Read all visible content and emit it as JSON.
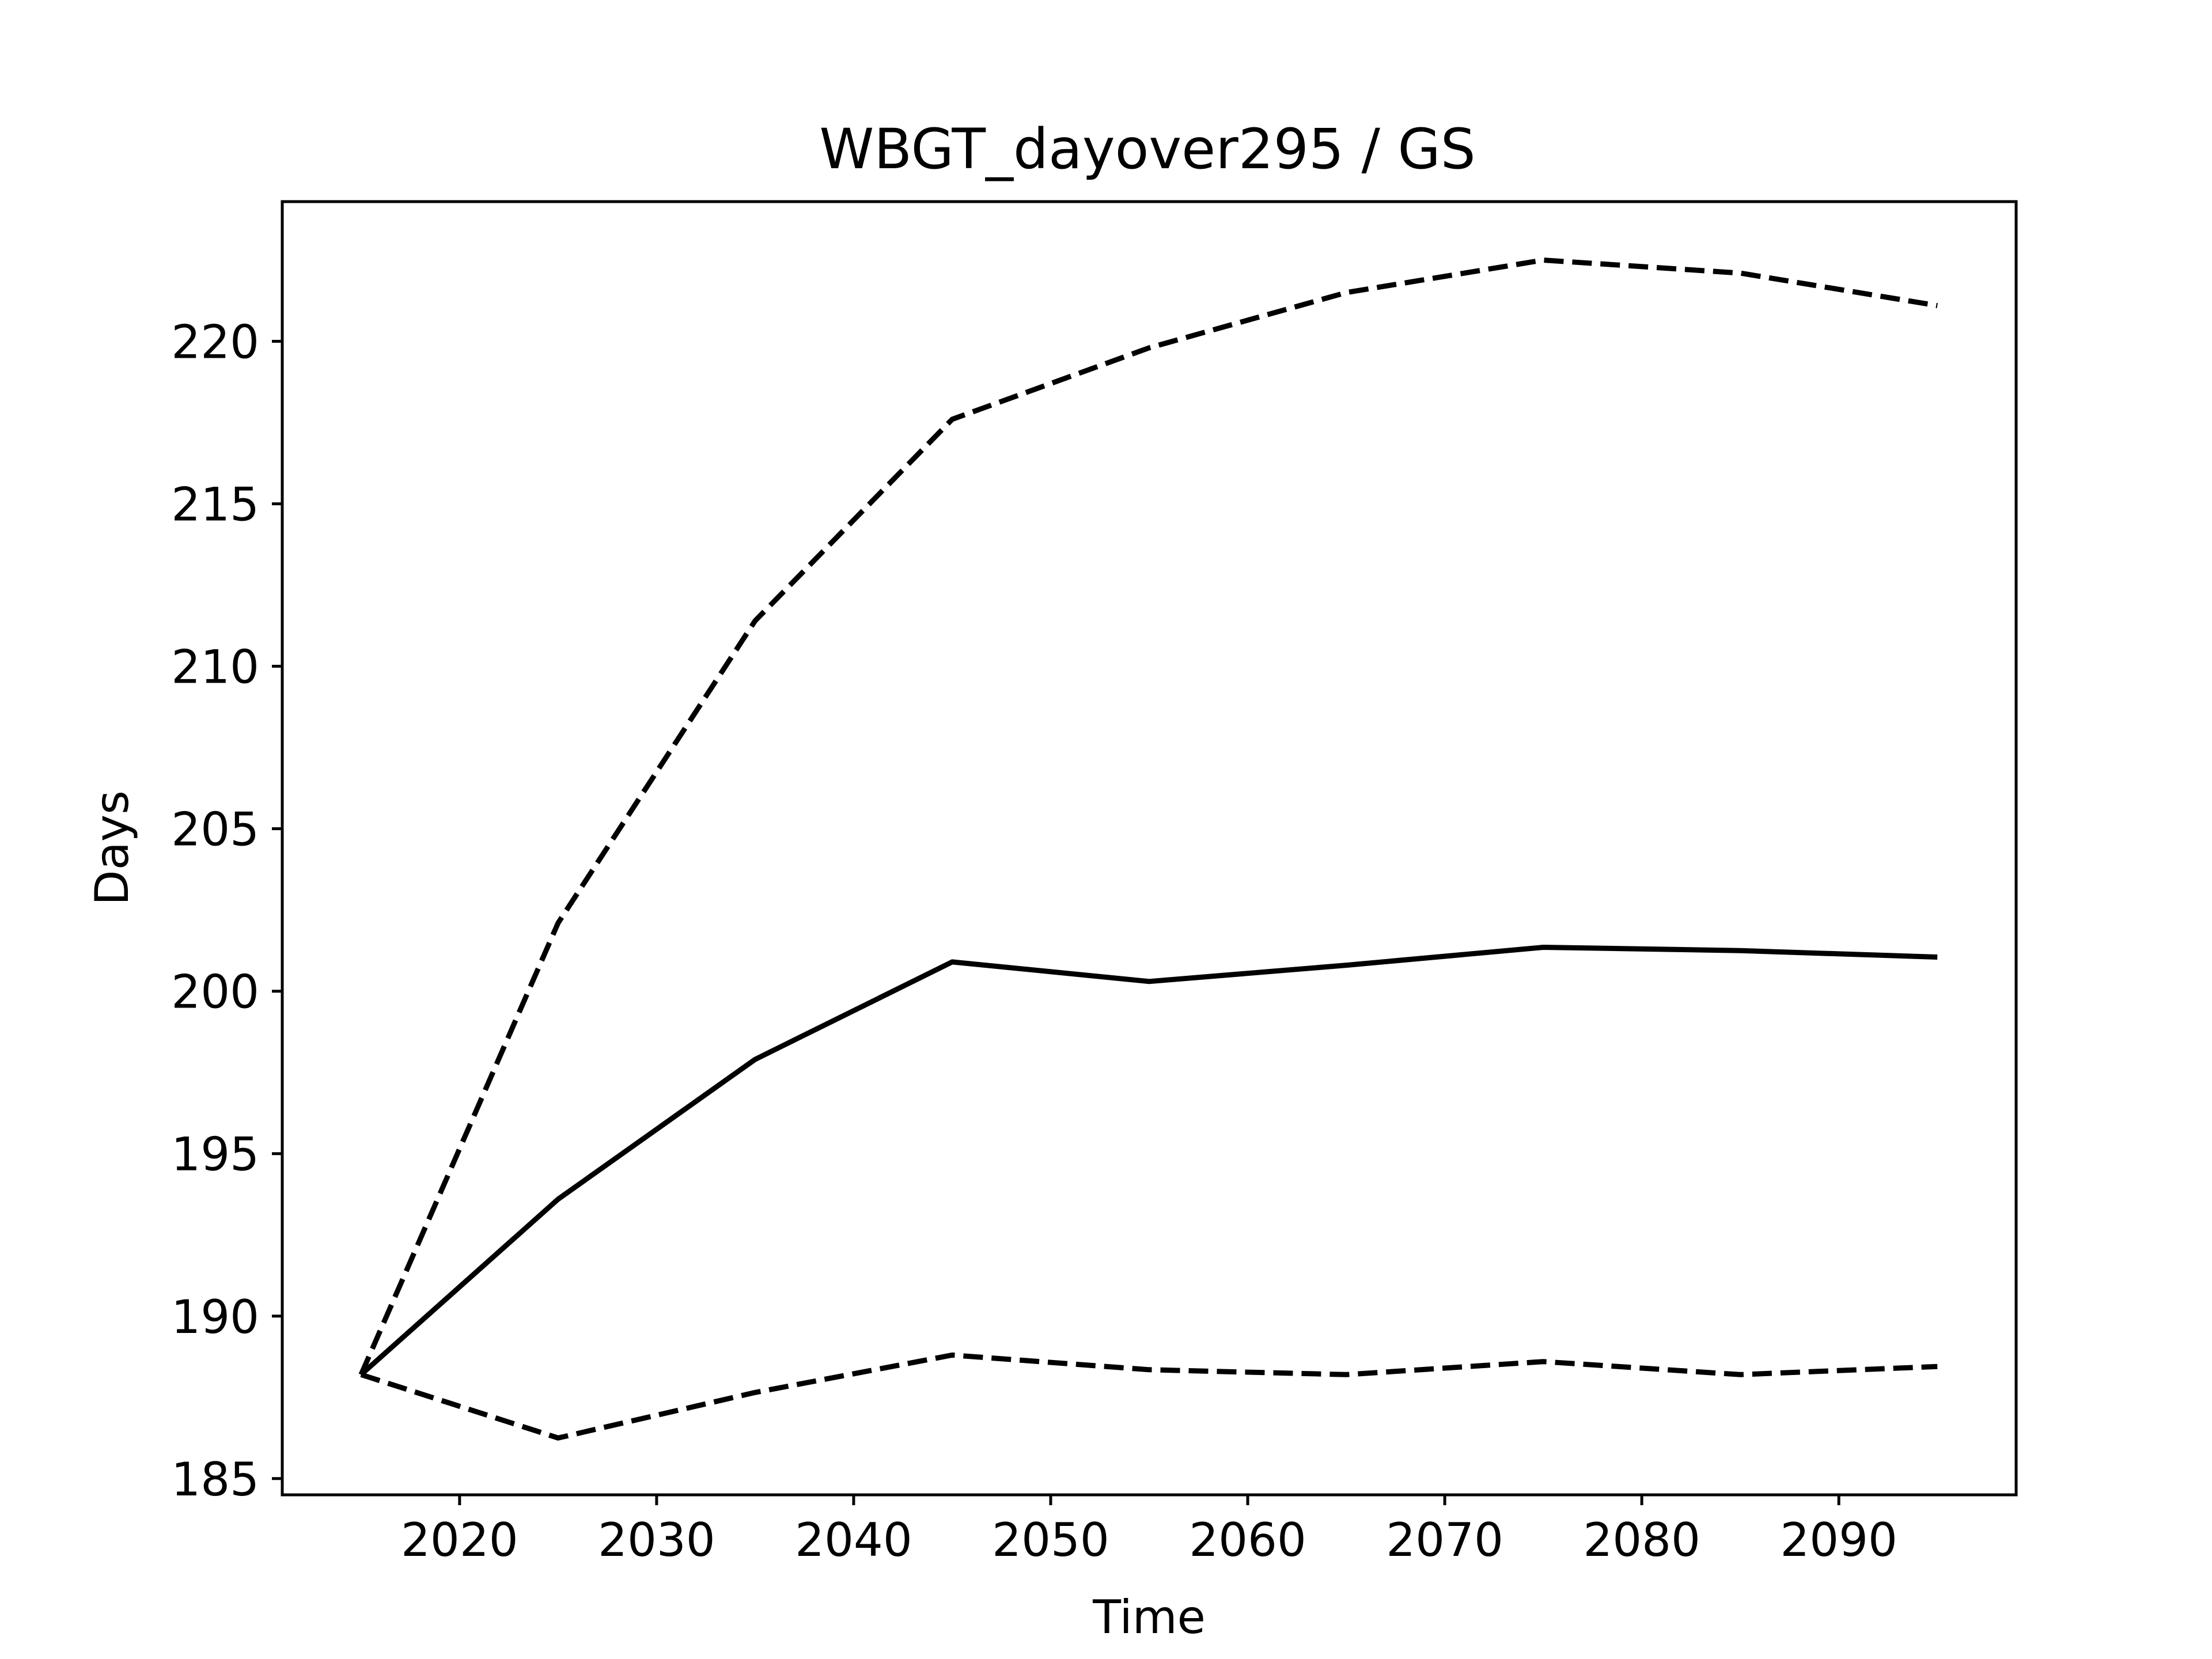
{
  "chart_data": {
    "type": "line",
    "title": "WBGT_dayover295 / GS",
    "xlabel": "Time",
    "ylabel": "Days",
    "xlim": [
      2011,
      2099
    ],
    "ylim": [
      184.5,
      224.3
    ],
    "xticks": [
      2020,
      2030,
      2040,
      2050,
      2060,
      2070,
      2080,
      2090
    ],
    "yticks": [
      185,
      190,
      195,
      200,
      205,
      210,
      215,
      220
    ],
    "grid": false,
    "legend": "none",
    "x": [
      2015,
      2025,
      2035,
      2045,
      2055,
      2065,
      2075,
      2085,
      2095
    ],
    "series": [
      {
        "style": "solid",
        "color": "#000000",
        "values": [
          188.2,
          193.6,
          197.9,
          200.9,
          200.3,
          200.8,
          201.35,
          201.25,
          201.05
        ]
      },
      {
        "style": "dashed",
        "color": "#000000",
        "values": [
          188.2,
          202.1,
          211.4,
          217.6,
          219.8,
          221.5,
          222.5,
          222.1,
          221.1
        ]
      },
      {
        "style": "dashed",
        "color": "#000000",
        "values": [
          188.2,
          186.25,
          187.65,
          188.8,
          188.35,
          188.2,
          188.6,
          188.2,
          188.45
        ]
      }
    ]
  }
}
